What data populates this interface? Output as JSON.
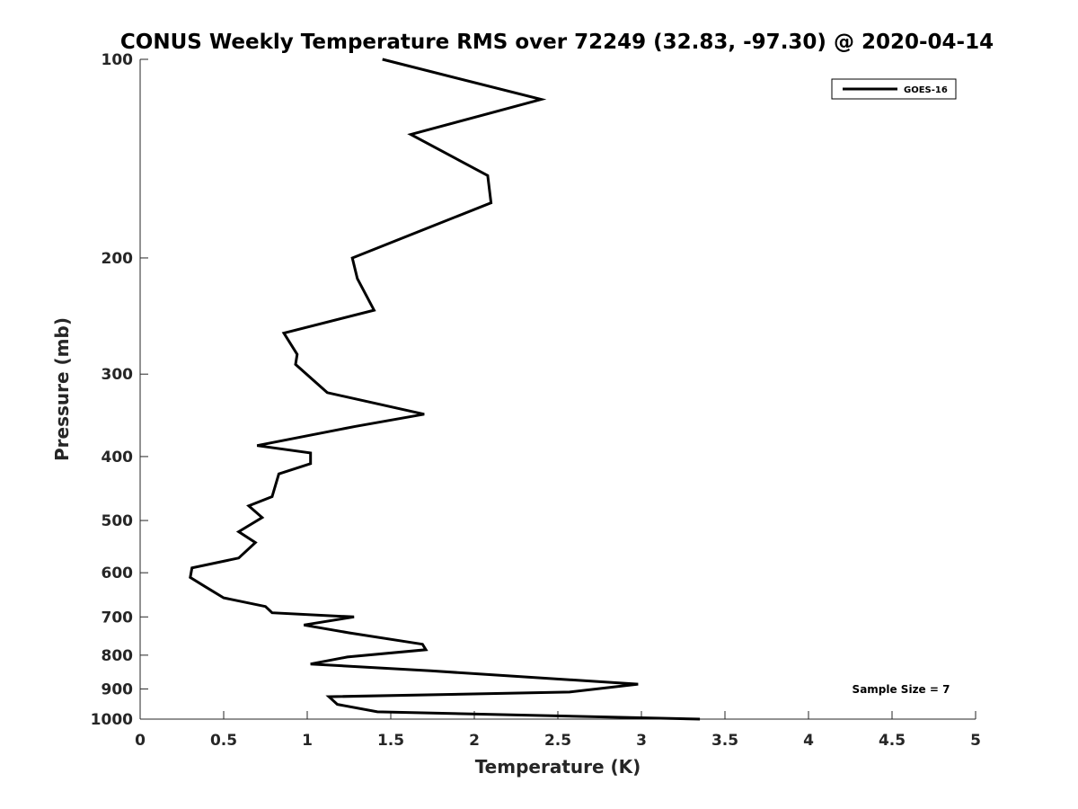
{
  "chart_data": {
    "type": "line",
    "title": "CONUS Weekly Temperature RMS over 72249 (32.83, -97.30) @ 2020-04-14",
    "xlabel": "Temperature (K)",
    "ylabel": "Pressure (mb)",
    "xlim": [
      0,
      5
    ],
    "ylim": [
      100,
      1000
    ],
    "y_scale": "log",
    "y_reversed": true,
    "x_ticks": [
      "0",
      "0.5",
      "1",
      "1.5",
      "2",
      "2.5",
      "3",
      "3.5",
      "4",
      "4.5",
      "5"
    ],
    "x_tick_values": [
      0,
      0.5,
      1,
      1.5,
      2,
      2.5,
      3,
      3.5,
      4,
      4.5,
      5
    ],
    "y_ticks": [
      "100",
      "200",
      "300",
      "400",
      "500",
      "600",
      "700",
      "800",
      "900",
      "1000"
    ],
    "y_tick_values": [
      100,
      200,
      300,
      400,
      500,
      600,
      700,
      800,
      900,
      1000
    ],
    "grid": false,
    "legend_position": "top-right",
    "series": [
      {
        "name": "GOES-16",
        "color": "#000000",
        "x": [
          1.45,
          2.4,
          1.62,
          2.08,
          2.1,
          1.27,
          1.3,
          1.4,
          0.86,
          0.94,
          0.93,
          1.12,
          1.7,
          1.29,
          0.7,
          1.02,
          1.02,
          0.83,
          0.79,
          0.65,
          0.73,
          0.59,
          0.69,
          0.59,
          0.31,
          0.3,
          0.39,
          0.5,
          0.75,
          0.79,
          1.28,
          0.98,
          1.25,
          1.69,
          1.71,
          1.24,
          1.02,
          1.74,
          2.98,
          2.57,
          1.13,
          1.18,
          1.42,
          3.35
        ],
        "y": [
          100,
          115,
          130,
          150,
          165,
          200,
          215,
          240,
          260,
          280,
          290,
          320,
          345,
          360,
          385,
          395,
          410,
          425,
          460,
          475,
          495,
          520,
          540,
          570,
          590,
          610,
          630,
          655,
          675,
          690,
          700,
          720,
          740,
          770,
          785,
          805,
          825,
          845,
          885,
          910,
          925,
          950,
          975,
          1000
        ]
      }
    ],
    "annotation": "Sample Size = 7"
  }
}
